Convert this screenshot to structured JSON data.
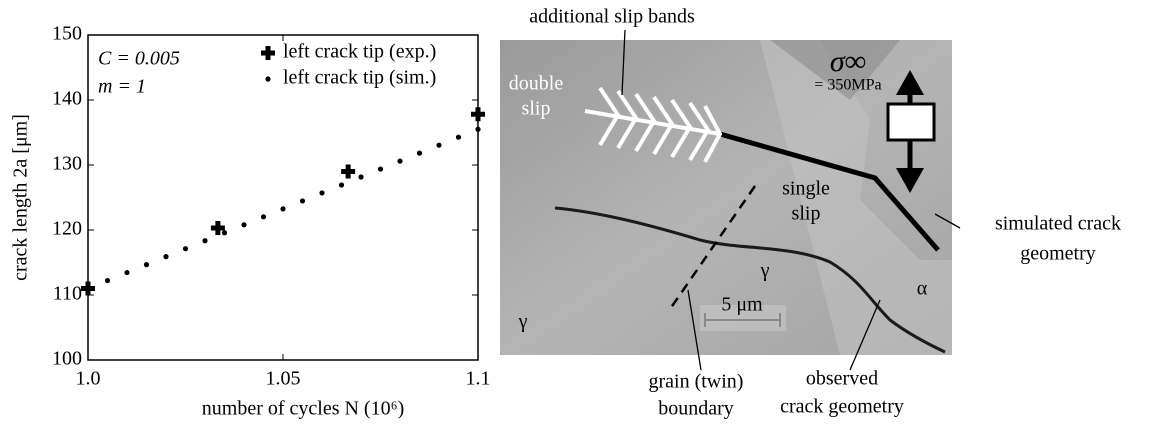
{
  "chart_data": {
    "type": "scatter",
    "xlabel": "number of cycles N (10⁶)",
    "ylabel": "crack length 2a [μm]",
    "annotations": [
      "C = 0.005",
      "m = 1"
    ],
    "xlim": [
      1.0,
      1.1
    ],
    "xticks": [
      {
        "value": 1,
        "label": "1.0"
      },
      1.05,
      1.1
    ],
    "ylim": [
      100,
      150
    ],
    "yticks": [
      100,
      110,
      120,
      130,
      140,
      150
    ],
    "legend": "upper right",
    "series": [
      {
        "name": "left crack tip (exp.)",
        "color": "#000000",
        "marker": "plus",
        "x": [
          1.0,
          1.0333,
          1.0667,
          1.1
        ],
        "values": [
          111,
          120.3,
          129,
          137.8
        ]
      },
      {
        "name": "left crack tip (sim.)",
        "color": "#000000",
        "marker": "dot",
        "x": [
          1.0,
          1.005,
          1.01,
          1.015,
          1.02,
          1.025,
          1.03,
          1.035,
          1.04,
          1.045,
          1.05,
          1.055,
          1.06,
          1.065,
          1.07,
          1.075,
          1.08,
          1.085,
          1.09,
          1.095,
          1.1
        ],
        "values": [
          111,
          112.225,
          113.45,
          114.675,
          115.9,
          117.125,
          118.35,
          119.575,
          120.8,
          122.025,
          123.25,
          124.475,
          125.7,
          126.925,
          128.15,
          129.375,
          130.6,
          131.825,
          133.05,
          134.275,
          135.5
        ]
      }
    ]
  },
  "micrograph": {
    "labels": {
      "slip_bands": "additional slip bands",
      "double_slip": [
        "double",
        "slip"
      ],
      "stress": "σ∞",
      "stress_value": "= 350MPa",
      "single_slip": [
        "single",
        "slip"
      ],
      "simulated": [
        "simulated crack",
        "geometry"
      ],
      "boundary": [
        "grain (twin)",
        "boundary"
      ],
      "observed": [
        "observed",
        "crack geometry"
      ],
      "scale": "5 μm",
      "gamma": [
        "γ",
        "γ"
      ],
      "alpha": "α"
    }
  }
}
